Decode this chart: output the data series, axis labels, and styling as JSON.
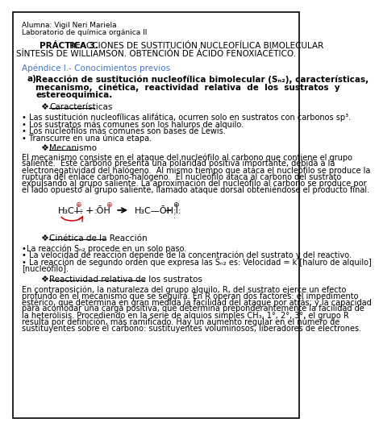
{
  "bg_color": "#ffffff",
  "border_color": "#000000",
  "header1": "Alumna: Vigil Neri Mariela",
  "header2": "Laboratorio de química orgánica II",
  "title_bold": "PRÁCTICA 3.",
  "title_rest": " REACCIONES DE SUSTITUCIÓN NUCLEOFÍLICA BIMOLECULAR",
  "subtitle": "SÍNTESIS DE WILLIAMSON. OBTENCIÓN DE ÁCIDO FENOXIACÉTICO.",
  "appendix_color": "#4472C4",
  "appendix": "Apéndice I.- Conocimientos previos",
  "bullet1": "• Las sustitución nucleofílicas alifática, ocurren solo en sustratos con carbonos sp³.",
  "bullet2": "• Los sustratos más comunes son los haluros de alquilo.",
  "bullet3": "• Los nucleófilos más comunes son bases de Lewis.",
  "bullet4": "• Transcurre en una única etapa.",
  "mec_lines": [
    "El mecanismo consiste en el ataque del nucleófilo al carbono que contiene el grupo",
    "saliente.  Este carbono presenta una polaridad positiva importante, debida a la",
    "electronegatividad del halógeno.  Al mismo tiempo que ataca el nucleófilo se produce la",
    "ruptura del enlace carbono-halógeno.  El nucleófilo ataca al carbono del sustrato",
    "expulsando al grupo saliente. La aproximación del nucleófilo al carbono se produce por",
    "el lado opuesto al grupo saliente, llamado ataque dorsal obteniéndose el producto final."
  ],
  "react_lines": [
    "En contraposición, la naturaleza del grupo alquilo, R, del sustrato ejerce un efecto",
    "profundo en el mecanismo que se seguirá. En R operan dos factores: el impedimento",
    "estérico, que determina en gran medida la facilidad del ataque por atrás; y la capacidad",
    "para acomodar una carga positiva, que determina preponderantemente la facilidad de",
    "la heterólisis. Procediendo en la serie de alquios simples CH₃, 1°, 2°, 3°, el grupo R",
    "resulta por definición, más ramificado. Hay un aumento regular en el número de",
    "sustituyentes sobre el carbono: sustituyentes voluminosos, liberadores de electrones."
  ],
  "red_color": "#cc0000",
  "blue_color": "#4472C4"
}
